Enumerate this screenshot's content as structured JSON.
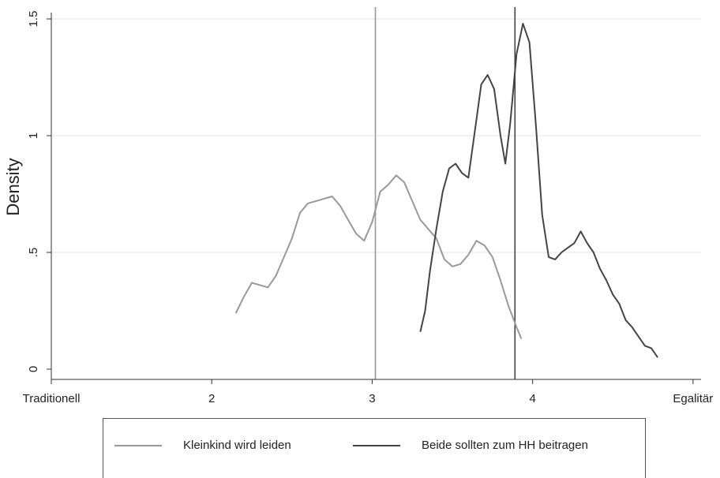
{
  "chart_data": {
    "type": "line",
    "title": "",
    "xlabel": "",
    "ylabel": "Density",
    "xlim": [
      1,
      5.05
    ],
    "ylim": [
      0,
      1.5
    ],
    "grid": true,
    "legend_position": "bottom",
    "x_ticks": [
      {
        "value": 1,
        "label": "Traditionell"
      },
      {
        "value": 2,
        "label": "2"
      },
      {
        "value": 3,
        "label": "3"
      },
      {
        "value": 4,
        "label": "4"
      },
      {
        "value": 5,
        "label": "Egalitär"
      }
    ],
    "y_ticks": [
      {
        "value": 0,
        "label": "0"
      },
      {
        "value": 0.5,
        "label": ".5"
      },
      {
        "value": 1,
        "label": "1"
      },
      {
        "value": 1.5,
        "label": "1.5"
      }
    ],
    "vlines": [
      {
        "x": 3.02,
        "color": "#999999"
      },
      {
        "x": 3.89,
        "color": "#444444"
      }
    ],
    "series": [
      {
        "name": "Kleinkind wird leiden",
        "color": "#999999",
        "points": [
          [
            2.15,
            0.24
          ],
          [
            2.2,
            0.31
          ],
          [
            2.25,
            0.37
          ],
          [
            2.3,
            0.36
          ],
          [
            2.35,
            0.35
          ],
          [
            2.4,
            0.4
          ],
          [
            2.45,
            0.48
          ],
          [
            2.5,
            0.56
          ],
          [
            2.55,
            0.67
          ],
          [
            2.6,
            0.71
          ],
          [
            2.65,
            0.72
          ],
          [
            2.7,
            0.73
          ],
          [
            2.75,
            0.74
          ],
          [
            2.8,
            0.7
          ],
          [
            2.85,
            0.64
          ],
          [
            2.9,
            0.58
          ],
          [
            2.95,
            0.55
          ],
          [
            3.0,
            0.63
          ],
          [
            3.05,
            0.76
          ],
          [
            3.1,
            0.79
          ],
          [
            3.15,
            0.83
          ],
          [
            3.2,
            0.8
          ],
          [
            3.25,
            0.72
          ],
          [
            3.3,
            0.64
          ],
          [
            3.35,
            0.6
          ],
          [
            3.4,
            0.56
          ],
          [
            3.45,
            0.47
          ],
          [
            3.5,
            0.44
          ],
          [
            3.55,
            0.45
          ],
          [
            3.6,
            0.49
          ],
          [
            3.65,
            0.55
          ],
          [
            3.7,
            0.53
          ],
          [
            3.75,
            0.48
          ],
          [
            3.8,
            0.38
          ],
          [
            3.85,
            0.27
          ],
          [
            3.9,
            0.18
          ],
          [
            3.93,
            0.13
          ]
        ]
      },
      {
        "name": "Beide sollten zum HH beitragen",
        "color": "#444444",
        "points": [
          [
            3.3,
            0.16
          ],
          [
            3.33,
            0.25
          ],
          [
            3.36,
            0.42
          ],
          [
            3.4,
            0.6
          ],
          [
            3.44,
            0.76
          ],
          [
            3.48,
            0.86
          ],
          [
            3.52,
            0.88
          ],
          [
            3.56,
            0.84
          ],
          [
            3.6,
            0.82
          ],
          [
            3.64,
            1.02
          ],
          [
            3.68,
            1.22
          ],
          [
            3.72,
            1.26
          ],
          [
            3.76,
            1.2
          ],
          [
            3.8,
            1.0
          ],
          [
            3.83,
            0.88
          ],
          [
            3.86,
            1.05
          ],
          [
            3.9,
            1.35
          ],
          [
            3.94,
            1.48
          ],
          [
            3.98,
            1.4
          ],
          [
            4.02,
            1.05
          ],
          [
            4.06,
            0.66
          ],
          [
            4.1,
            0.48
          ],
          [
            4.14,
            0.47
          ],
          [
            4.18,
            0.5
          ],
          [
            4.22,
            0.52
          ],
          [
            4.26,
            0.54
          ],
          [
            4.3,
            0.59
          ],
          [
            4.34,
            0.54
          ],
          [
            4.38,
            0.5
          ],
          [
            4.42,
            0.43
          ],
          [
            4.46,
            0.38
          ],
          [
            4.5,
            0.32
          ],
          [
            4.54,
            0.28
          ],
          [
            4.58,
            0.21
          ],
          [
            4.62,
            0.18
          ],
          [
            4.66,
            0.14
          ],
          [
            4.7,
            0.1
          ],
          [
            4.74,
            0.09
          ],
          [
            4.78,
            0.05
          ]
        ]
      }
    ]
  }
}
